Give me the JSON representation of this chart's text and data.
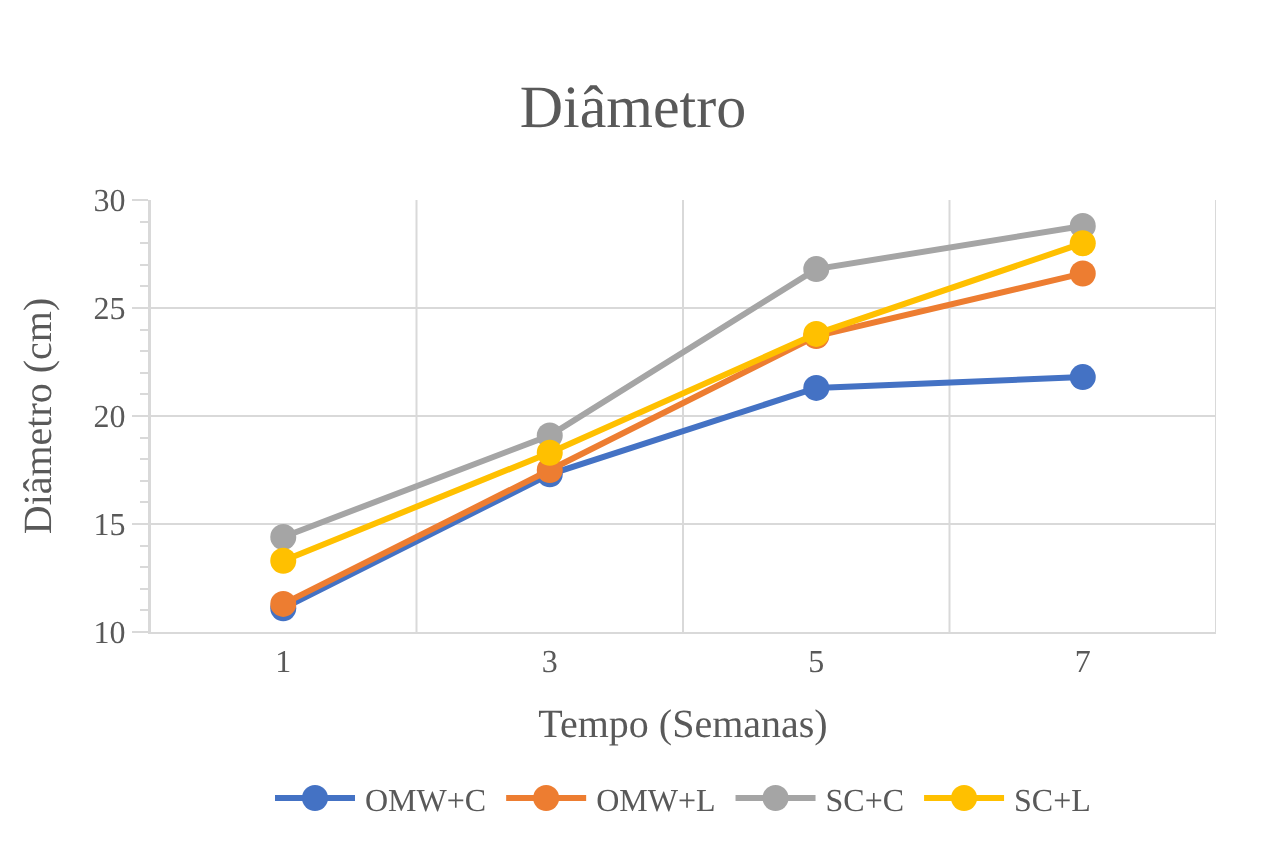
{
  "chart_data": {
    "type": "line",
    "title": "Diâmetro",
    "xlabel": "Tempo (Semanas)",
    "ylabel": "Diâmetro (cm)",
    "categories": [
      "1",
      "3",
      "5",
      "7"
    ],
    "series": [
      {
        "name": "OMW+C",
        "color": "#4472c4",
        "values": [
          11.1,
          17.3,
          21.3,
          21.8
        ]
      },
      {
        "name": "OMW+L",
        "color": "#ed7d31",
        "values": [
          11.3,
          17.5,
          23.7,
          26.6
        ]
      },
      {
        "name": "SC+C",
        "color": "#a5a5a5",
        "values": [
          14.4,
          19.1,
          26.8,
          28.8
        ]
      },
      {
        "name": "SC+L",
        "color": "#ffc000",
        "values": [
          13.3,
          18.3,
          23.8,
          28.0
        ]
      }
    ],
    "ylim": [
      10,
      30
    ],
    "yticks": [
      10,
      15,
      20,
      25,
      30
    ],
    "grid": true,
    "legend": "bottom",
    "marker": "circle",
    "line_style": "solid"
  }
}
